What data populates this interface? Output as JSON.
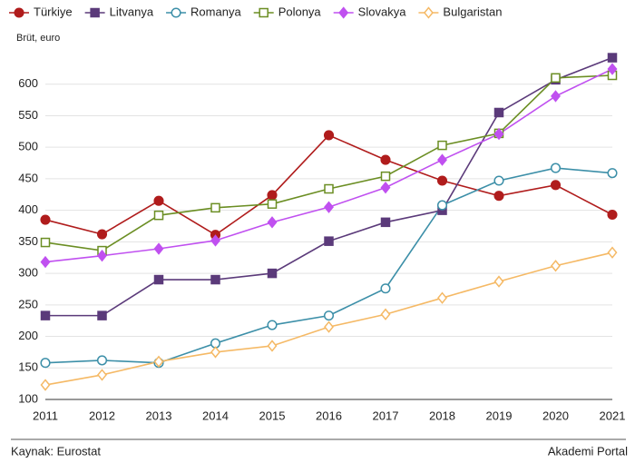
{
  "chart_data": {
    "type": "line",
    "y_label": "Brüt, euro",
    "source": "Kaynak: Eurostat",
    "credit": "Akademi Portal",
    "categories": [
      "2011",
      "2012",
      "2013",
      "2014",
      "2015",
      "2016",
      "2017",
      "2018",
      "2019",
      "2020",
      "2021"
    ],
    "ylim": [
      100,
      650
    ],
    "yticks": [
      100,
      150,
      200,
      250,
      300,
      350,
      400,
      450,
      500,
      550,
      600
    ],
    "grid": true,
    "legend": "top",
    "series": [
      {
        "name": "Türkiye",
        "color": "#b01c1c",
        "marker": "circle",
        "filled": true,
        "values": [
          385,
          362,
          415,
          361,
          424,
          519,
          480,
          447,
          423,
          440,
          393
        ]
      },
      {
        "name": "Litvanya",
        "color": "#5b3a7a",
        "marker": "square",
        "filled": true,
        "values": [
          233,
          233,
          290,
          290,
          300,
          351,
          381,
          400,
          555,
          607,
          642
        ]
      },
      {
        "name": "Romanya",
        "color": "#3c8fa8",
        "marker": "circle",
        "filled": false,
        "values": [
          158,
          162,
          158,
          189,
          218,
          233,
          276,
          408,
          447,
          467,
          459
        ]
      },
      {
        "name": "Polonya",
        "color": "#6b8e23",
        "marker": "square",
        "filled": false,
        "values": [
          349,
          336,
          392,
          404,
          410,
          434,
          454,
          503,
          522,
          610,
          614
        ]
      },
      {
        "name": "Slovakya",
        "color": "#c050f0",
        "marker": "diamond",
        "filled": true,
        "values": [
          318,
          328,
          339,
          352,
          381,
          405,
          436,
          480,
          521,
          581,
          624
        ]
      },
      {
        "name": "Bulgaristan",
        "color": "#f5b965",
        "marker": "diamond",
        "filled": false,
        "values": [
          123,
          139,
          160,
          175,
          185,
          215,
          235,
          261,
          287,
          312,
          333
        ]
      }
    ]
  }
}
